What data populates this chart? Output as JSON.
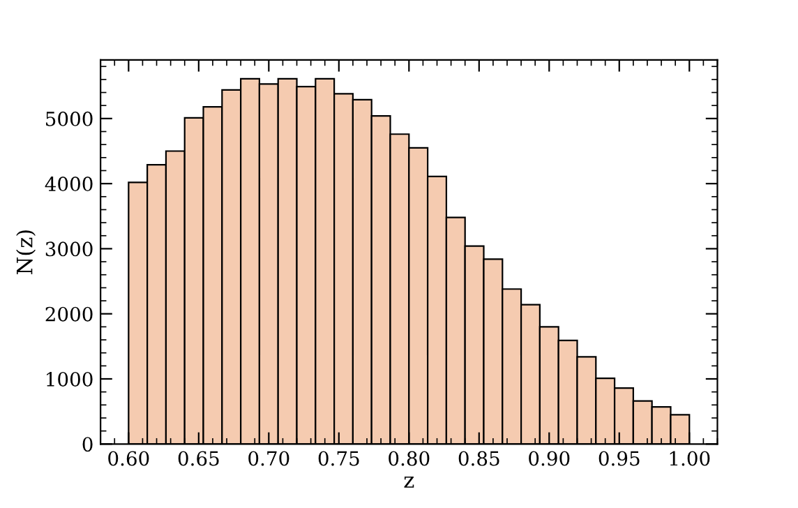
{
  "chart_data": {
    "type": "histogram",
    "xlabel": "z",
    "ylabel": "N(z)",
    "bins": [
      0.6,
      0.61333,
      0.62667,
      0.64,
      0.65333,
      0.66667,
      0.68,
      0.69333,
      0.70667,
      0.72,
      0.73333,
      0.74667,
      0.76,
      0.77333,
      0.78667,
      0.8,
      0.81333,
      0.82667,
      0.84,
      0.85333,
      0.86667,
      0.88,
      0.89333,
      0.90667,
      0.92,
      0.93333,
      0.94667,
      0.96,
      0.97333,
      0.98667,
      1.0
    ],
    "values": [
      4020,
      4290,
      4500,
      5010,
      5180,
      5440,
      5610,
      5530,
      5610,
      5490,
      5610,
      5380,
      5290,
      5040,
      4760,
      4550,
      4110,
      3480,
      3040,
      2840,
      2380,
      2140,
      1800,
      1590,
      1340,
      1010,
      860,
      660,
      570,
      450
    ],
    "color": "#f5cbb0",
    "xlim": [
      0.58,
      1.02
    ],
    "xticks": [
      {
        "value": 0.6,
        "label": "0.60"
      },
      {
        "value": 0.65,
        "label": "0.65"
      },
      {
        "value": 0.7,
        "label": "0.70"
      },
      {
        "value": 0.75,
        "label": "0.75"
      },
      {
        "value": 0.8,
        "label": "0.80"
      },
      {
        "value": 0.85,
        "label": "0.85"
      },
      {
        "value": 0.9,
        "label": "0.90"
      },
      {
        "value": 0.95,
        "label": "0.95"
      },
      {
        "value": 1.0,
        "label": "1.00"
      }
    ],
    "ylim": [
      0,
      5900
    ],
    "yticks": [
      0,
      1000,
      2000,
      3000,
      4000,
      5000
    ],
    "grid": false
  }
}
